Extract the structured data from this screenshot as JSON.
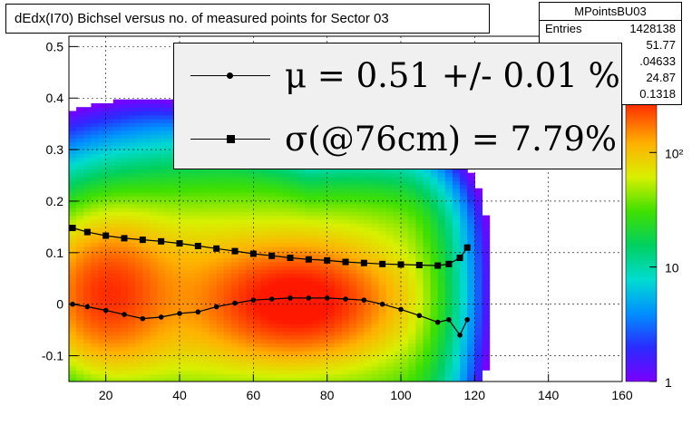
{
  "title": "dEdx(I70) Bichsel versus no. of measured points for Sector 03",
  "stats": {
    "name": "MPointsBU03",
    "rows": [
      {
        "key": "Entries",
        "value": "1428138"
      },
      {
        "key": "",
        "value": "51.77"
      },
      {
        "key": "",
        "value": ".04633"
      },
      {
        "key": "",
        "value": "24.87"
      },
      {
        "key": "",
        "value": "0.1318"
      }
    ]
  },
  "legend": {
    "mu_text": "μ  =  0.51 +/-  0.01 %",
    "sigma_text": "σ(@76cm) =  7.79%"
  },
  "colorbar": {
    "ticks": [
      "1",
      "10",
      "10²"
    ]
  },
  "chart_data": {
    "type": "heatmap",
    "title": "dEdx(I70) Bichsel versus no. of measured points for Sector 03",
    "xlabel": "",
    "ylabel": "",
    "xlim": [
      10,
      160
    ],
    "ylim": [
      -0.15,
      0.52
    ],
    "xticks": [
      20,
      40,
      60,
      80,
      100,
      120,
      140,
      160
    ],
    "yticks": [
      -0.1,
      0,
      0.1,
      0.2,
      0.3,
      0.4,
      0.5
    ],
    "grid": true,
    "z_scale": "log",
    "z_range": [
      1,
      300
    ],
    "series": [
      {
        "name": "μ",
        "x": [
          11,
          15,
          20,
          25,
          30,
          35,
          40,
          45,
          50,
          55,
          60,
          65,
          70,
          75,
          80,
          85,
          90,
          95,
          100,
          105,
          110,
          113,
          116,
          118
        ],
        "values": [
          0.0,
          -0.005,
          -0.012,
          -0.02,
          -0.028,
          -0.025,
          -0.018,
          -0.015,
          -0.005,
          0.002,
          0.008,
          0.01,
          0.012,
          0.012,
          0.012,
          0.01,
          0.008,
          0.0,
          -0.01,
          -0.022,
          -0.035,
          -0.03,
          -0.06,
          -0.03
        ]
      },
      {
        "name": "σ(@76cm)",
        "x": [
          11,
          15,
          20,
          25,
          30,
          35,
          40,
          45,
          50,
          55,
          60,
          65,
          70,
          75,
          80,
          85,
          90,
          95,
          100,
          105,
          110,
          113,
          116,
          118
        ],
        "values": [
          0.148,
          0.14,
          0.133,
          0.128,
          0.125,
          0.122,
          0.118,
          0.113,
          0.108,
          0.103,
          0.098,
          0.094,
          0.09,
          0.087,
          0.085,
          0.082,
          0.08,
          0.078,
          0.077,
          0.076,
          0.075,
          0.078,
          0.09,
          0.11
        ]
      }
    ]
  }
}
